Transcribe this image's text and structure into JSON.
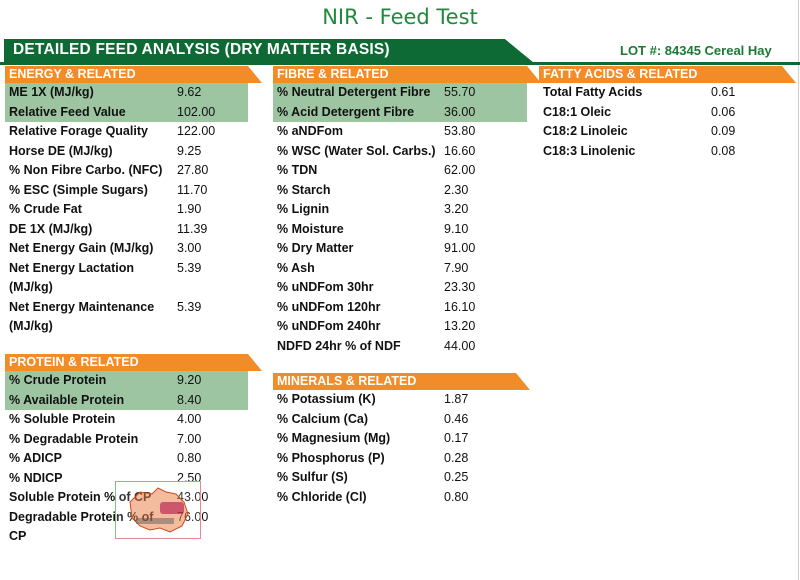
{
  "title": "NIR - Feed Test",
  "banner": "DETAILED FEED ANALYSIS (DRY MATTER BASIS)",
  "lot": "LOT #: 84345 Cereal Hay",
  "energy": {
    "heading": "ENERGY & RELATED",
    "rows": [
      {
        "label": "ME 1X (MJ/kg)",
        "value": "9.62"
      },
      {
        "label": "Relative Feed Value",
        "value": "102.00"
      },
      {
        "label": "Relative Forage Quality",
        "value": "122.00"
      },
      {
        "label": "Horse DE (MJ/kg)",
        "value": "9.25"
      },
      {
        "label": "% Non Fibre Carbo. (NFC)",
        "value": "27.80"
      },
      {
        "label": "% ESC (Simple Sugars)",
        "value": "11.70"
      },
      {
        "label": "% Crude Fat",
        "value": "1.90"
      },
      {
        "label": "DE 1X (MJ/kg)",
        "value": "11.39"
      },
      {
        "label": "Net Energy Gain (MJ/kg)",
        "value": "3.00"
      },
      {
        "label": "Net Energy Lactation",
        "label2": "(MJ/kg)",
        "value": "5.39"
      },
      {
        "label": "Net Energy Maintenance",
        "label2": "(MJ/kg)",
        "value": "5.39"
      }
    ]
  },
  "protein": {
    "heading": "PROTEIN & RELATED",
    "rows": [
      {
        "label": "% Crude Protein",
        "value": "9.20"
      },
      {
        "label": "% Available Protein",
        "value": "8.40"
      },
      {
        "label": "% Soluble Protein",
        "value": "4.00"
      },
      {
        "label": "% Degradable Protein",
        "value": "7.00"
      },
      {
        "label": "% ADICP",
        "value": "0.80"
      },
      {
        "label": "% NDICP",
        "value": "2.50"
      },
      {
        "label": "Soluble Protein % of CP",
        "value": "43.00"
      },
      {
        "label": "Degradable Protein % of",
        "label2": "CP",
        "value": "76.00"
      }
    ]
  },
  "fibre": {
    "heading": "FIBRE & RELATED",
    "rows": [
      {
        "label": "% Neutral Detergent Fibre",
        "value": "55.70"
      },
      {
        "label": "% Acid Detergent Fibre",
        "value": "36.00"
      },
      {
        "label": "% aNDFom",
        "value": "53.80"
      },
      {
        "label": "% WSC (Water Sol. Carbs.)",
        "value": "16.60"
      },
      {
        "label": "% TDN",
        "value": "62.00"
      },
      {
        "label": "% Starch",
        "value": "2.30"
      },
      {
        "label": "% Lignin",
        "value": "3.20"
      },
      {
        "label": "% Moisture",
        "value": "9.10"
      },
      {
        "label": "% Dry Matter",
        "value": "91.00"
      },
      {
        "label": "% Ash",
        "value": "7.90"
      },
      {
        "label": "% uNDFom 30hr",
        "value": "23.30"
      },
      {
        "label": "% uNDFom 120hr",
        "value": "16.10"
      },
      {
        "label": "% uNDFom 240hr",
        "value": "13.20"
      },
      {
        "label": "NDFD 24hr % of NDF",
        "value": "44.00"
      }
    ]
  },
  "minerals": {
    "heading": "MINERALS & RELATED",
    "rows": [
      {
        "label": "% Potassium (K)",
        "value": "1.87"
      },
      {
        "label": "% Calcium (Ca)",
        "value": "0.46"
      },
      {
        "label": "% Magnesium (Mg)",
        "value": "0.17"
      },
      {
        "label": "% Phosphorus (P)",
        "value": "0.28"
      },
      {
        "label": "% Sulfur (S)",
        "value": "0.25"
      },
      {
        "label": "% Chloride (Cl)",
        "value": "0.80"
      }
    ]
  },
  "fatty": {
    "heading": "FATTY ACIDS & RELATED",
    "rows": [
      {
        "label": "Total Fatty Acids",
        "value": "0.61"
      },
      {
        "label": "C18:1 Oleic",
        "value": "0.06"
      },
      {
        "label": "C18:2 Linoleic",
        "value": "0.09"
      },
      {
        "label": "C18:3 Linolenic",
        "value": "0.08"
      }
    ]
  }
}
